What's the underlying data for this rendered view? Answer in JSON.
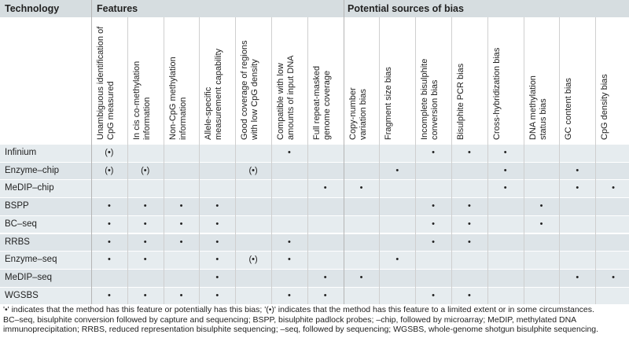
{
  "header": {
    "technology": "Technology",
    "features": "Features",
    "bias": "Potential sources of bias"
  },
  "columns": [
    [
      "Unambiguous identification of",
      "CpG measured"
    ],
    [
      "In cis co-methylation",
      "information"
    ],
    [
      "Non-CpG methylation",
      "information"
    ],
    [
      "Allele-specific",
      "measurement capability"
    ],
    [
      "Good coverage of regions",
      "with low CpG density"
    ],
    [
      "Compatible with low",
      "amounts of input DNA"
    ],
    [
      "Full repeat-masked",
      "genome coverage"
    ],
    [
      "Copy-number",
      "variation bias"
    ],
    [
      "Fragment size bias"
    ],
    [
      "Incomplete bisulphite",
      "conversion bias"
    ],
    [
      "Bisulphite PCR bias"
    ],
    [
      "Cross-hybridization bias"
    ],
    [
      "DNA methylation",
      "status bias"
    ],
    [
      "GC content bias"
    ],
    [
      "CpG density bias"
    ]
  ],
  "rows": [
    {
      "name": "Infinium",
      "marks": [
        "(•)",
        "",
        "",
        "",
        "",
        "•",
        "",
        "",
        "",
        "•",
        "•",
        "•",
        "",
        "",
        ""
      ]
    },
    {
      "name": "Enzyme–chip",
      "marks": [
        "(•)",
        "(•)",
        "",
        "",
        "(•)",
        "",
        "",
        "",
        "•",
        "",
        "",
        "•",
        "",
        "•",
        ""
      ]
    },
    {
      "name": "MeDIP–chip",
      "marks": [
        "",
        "",
        "",
        "",
        "",
        "",
        "•",
        "•",
        "",
        "",
        "",
        "•",
        "",
        "•",
        "•"
      ]
    },
    {
      "name": "BSPP",
      "marks": [
        "•",
        "•",
        "•",
        "•",
        "",
        "",
        "",
        "",
        "",
        "•",
        "•",
        "",
        "•",
        "",
        ""
      ]
    },
    {
      "name": "BC–seq",
      "marks": [
        "•",
        "•",
        "•",
        "•",
        "",
        "",
        "",
        "",
        "",
        "•",
        "•",
        "",
        "•",
        "",
        ""
      ]
    },
    {
      "name": "RRBS",
      "marks": [
        "•",
        "•",
        "•",
        "•",
        "",
        "•",
        "",
        "",
        "",
        "•",
        "•",
        "",
        "",
        "",
        ""
      ]
    },
    {
      "name": "Enzyme–seq",
      "marks": [
        "•",
        "•",
        "",
        "•",
        "(•)",
        "•",
        "",
        "",
        "•",
        "",
        "",
        "",
        "",
        "",
        ""
      ]
    },
    {
      "name": "MeDIP–seq",
      "marks": [
        "",
        "",
        "",
        "•",
        "",
        "",
        "•",
        "•",
        "",
        "",
        "",
        "",
        "",
        "•",
        "•"
      ]
    },
    {
      "name": "WGSBS",
      "marks": [
        "•",
        "•",
        "•",
        "•",
        "",
        "•",
        "•",
        "",
        "",
        "•",
        "•",
        "",
        "",
        "",
        ""
      ]
    }
  ],
  "footnote": [
    "'•' indicates that the method has this feature or potentially has this bias; '(•)' indicates that the method has this feature to a limited extent or in some circumstances.",
    "BC–seq, bisulphite conversion followed by capture and sequencing; BSPP, bisulphite padlock probes; –chip, followed by microarray; MeDIP, methylated DNA",
    "immunoprecipitation; RRBS, reduced representation bisulphite sequencing; –seq, followed by sequencing; WGSBS, whole-genome shotgun bisulphite sequencing."
  ]
}
